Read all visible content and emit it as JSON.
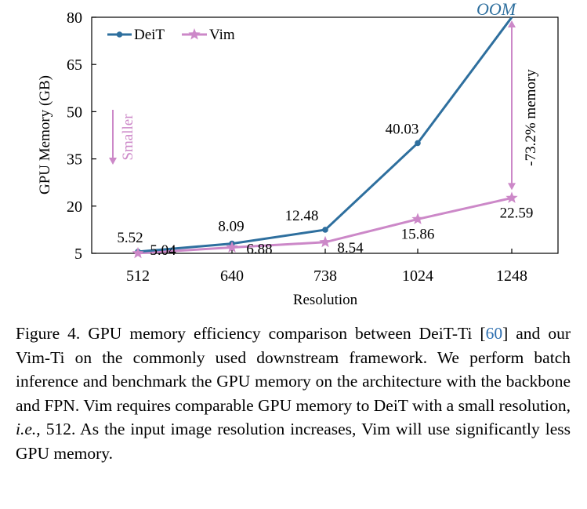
{
  "chart_data": {
    "type": "line",
    "categories": [
      "512",
      "640",
      "738",
      "1024",
      "1248"
    ],
    "xlabel": "Resolution",
    "ylabel": "GPU Memory (GB)",
    "ylim": [
      5,
      80
    ],
    "yticks": [
      5,
      20,
      35,
      50,
      65,
      80
    ],
    "grid": false,
    "legend_position": "top-left",
    "series": [
      {
        "name": "DeiT",
        "values": [
          5.52,
          8.09,
          12.48,
          40.03,
          80
        ],
        "labels": [
          "5.52",
          "8.09",
          "12.48",
          "40.03",
          ""
        ],
        "color": "#2e6f9e",
        "marker": "circle"
      },
      {
        "name": "Vim",
        "values": [
          5.04,
          6.88,
          8.54,
          15.86,
          22.59
        ],
        "labels": [
          "5.04",
          "6.88",
          "8.54",
          "15.86",
          "22.59"
        ],
        "color": "#cc88c8",
        "marker": "star"
      }
    ],
    "annotations": {
      "oom": "OOM",
      "oom_color": "#2e6f9e",
      "reduction": "-73.2% memory",
      "smaller": "Smaller",
      "annotation_color": "#cc88c8"
    }
  },
  "caption": {
    "prefix": "Figure 4.  GPU memory efficiency comparison between DeiT-Ti [",
    "cite": "60",
    "mid": "] and our Vim-Ti on the commonly used downstream framework. We perform batch inference and benchmark the GPU memory on the architecture with the backbone and FPN. Vim requires comparable GPU memory to DeiT with a small resolution, ",
    "ie": "i.e.",
    "suffix": ", 512. As the input image resolution increases, Vim will use significantly less GPU memory."
  }
}
